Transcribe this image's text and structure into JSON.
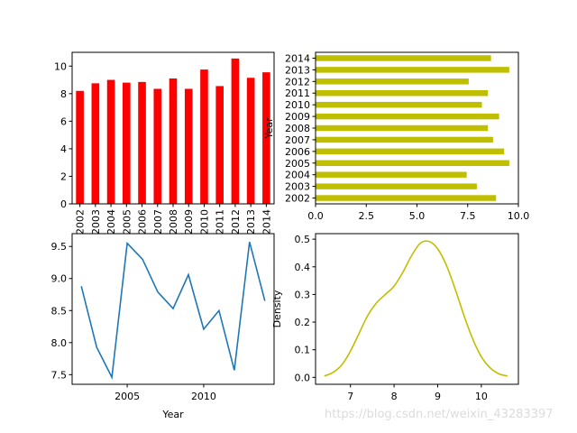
{
  "watermark": "https://blog.csdn.net/weixin_43283397",
  "chart_data": [
    {
      "type": "bar",
      "categories": [
        "2002",
        "2003",
        "2004",
        "2005",
        "2006",
        "2007",
        "2008",
        "2009",
        "2010",
        "2011",
        "2012",
        "2013",
        "2014"
      ],
      "values": [
        8.2,
        8.75,
        9.0,
        8.8,
        8.85,
        8.35,
        9.1,
        8.35,
        9.75,
        8.55,
        10.55,
        9.15,
        9.55
      ],
      "ylim": [
        0,
        11
      ],
      "yticks": [
        0,
        2,
        4,
        6,
        8,
        10
      ],
      "color": "#ff0000"
    },
    {
      "type": "bar",
      "orientation": "horizontal",
      "categories": [
        "2002",
        "2003",
        "2004",
        "2005",
        "2006",
        "2007",
        "2008",
        "2009",
        "2010",
        "2011",
        "2012",
        "2013",
        "2014"
      ],
      "values": [
        8.9,
        7.95,
        7.45,
        9.55,
        9.3,
        8.75,
        8.5,
        9.05,
        8.2,
        8.5,
        7.55,
        9.55,
        8.65
      ],
      "ylabel": "Year",
      "xlim": [
        0,
        10
      ],
      "xticks": [
        0,
        2.5,
        5.0,
        7.5,
        10.0
      ],
      "xtick_labels": [
        "0.0",
        "2.5",
        "5.0",
        "7.5",
        "10.0"
      ],
      "color": "#bfbf00"
    },
    {
      "type": "line",
      "x": [
        2002,
        2003,
        2004,
        2005,
        2006,
        2007,
        2008,
        2009,
        2010,
        2011,
        2012,
        2013,
        2014
      ],
      "y": [
        8.88,
        7.93,
        7.46,
        9.55,
        9.3,
        8.79,
        8.53,
        9.06,
        8.21,
        8.5,
        7.57,
        9.57,
        8.65
      ],
      "xlabel": "Year",
      "xlim": [
        2001.4,
        2014.6
      ],
      "xticks": [
        2005,
        2010
      ],
      "ylim": [
        7.35,
        9.7
      ],
      "yticks": [
        7.5,
        8.0,
        8.5,
        9.0,
        9.5
      ],
      "ytick_labels": [
        "7.5",
        "8.0",
        "8.5",
        "9.0",
        "9.5"
      ],
      "color": "#1f77b4"
    },
    {
      "type": "line",
      "kind": "density",
      "x": [
        6.4,
        6.6,
        6.8,
        7.0,
        7.2,
        7.4,
        7.6,
        7.8,
        8.0,
        8.2,
        8.4,
        8.6,
        8.8,
        9.0,
        9.2,
        9.4,
        9.6,
        9.8,
        10.0,
        10.2,
        10.4,
        10.6
      ],
      "y": [
        0.005,
        0.018,
        0.045,
        0.095,
        0.16,
        0.225,
        0.27,
        0.3,
        0.33,
        0.38,
        0.44,
        0.485,
        0.492,
        0.465,
        0.405,
        0.32,
        0.225,
        0.14,
        0.075,
        0.035,
        0.013,
        0.005
      ],
      "ylabel": "Density",
      "xlim": [
        6.2,
        10.85
      ],
      "xticks": [
        7,
        8,
        9,
        10
      ],
      "ylim": [
        -0.025,
        0.52
      ],
      "yticks": [
        0.0,
        0.1,
        0.2,
        0.3,
        0.4,
        0.5
      ],
      "ytick_labels": [
        "0.0",
        "0.1",
        "0.2",
        "0.3",
        "0.4",
        "0.5"
      ],
      "color": "#bfbf00"
    }
  ]
}
